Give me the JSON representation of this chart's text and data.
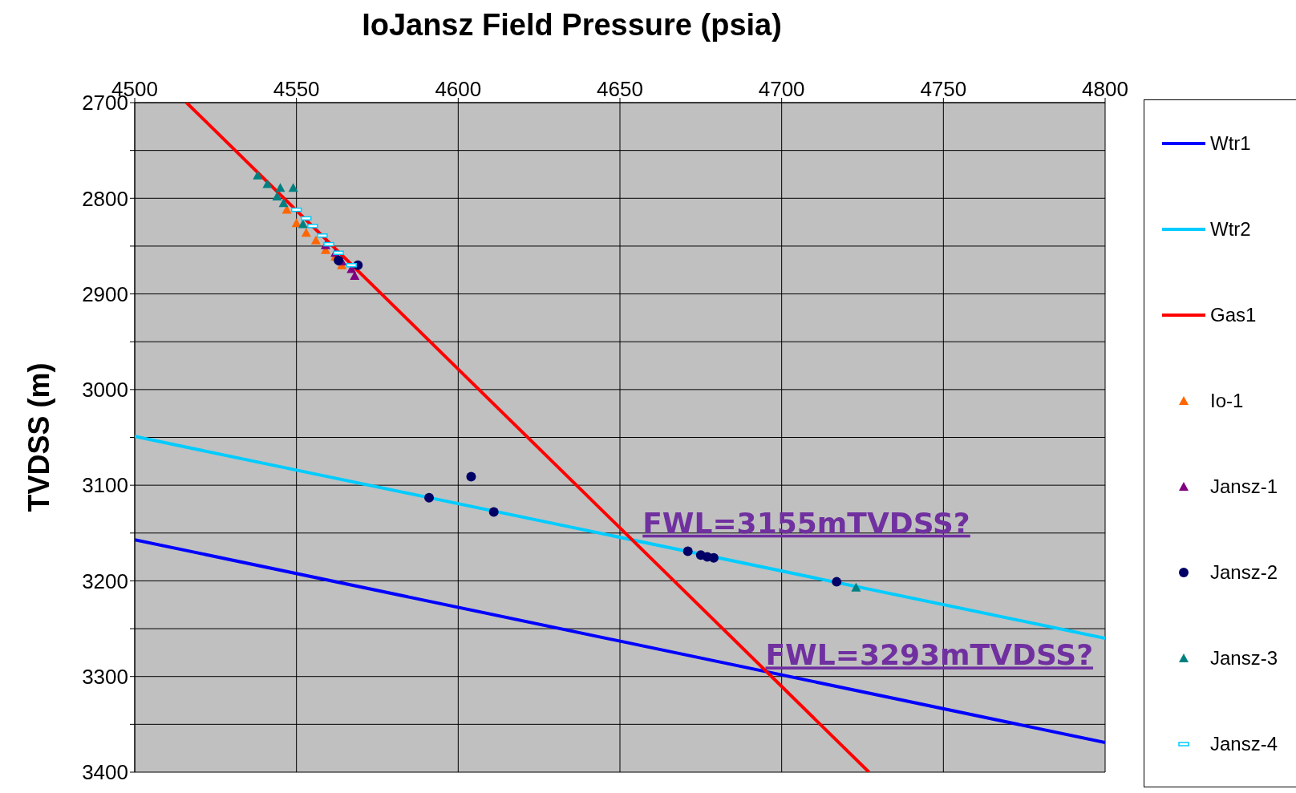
{
  "chart_data": {
    "type": "scatter",
    "title": "IoJansz Field Pressure (psia)",
    "ylabel": "TVDSS (m)",
    "xlim": [
      4500,
      4800
    ],
    "xticks": [
      4500,
      4550,
      4600,
      4650,
      4700,
      4750,
      4800
    ],
    "ylim": [
      3400,
      2700
    ],
    "yticks": [
      2700,
      {
        "value": 2750,
        "label": null
      },
      2800,
      {
        "value": 2850,
        "label": null
      },
      2900,
      {
        "value": 2950,
        "label": null
      },
      3000,
      {
        "value": 3050,
        "label": null
      },
      3100,
      {
        "value": 3150,
        "label": null
      },
      3200,
      {
        "value": 3250,
        "label": null
      },
      3300,
      {
        "value": 3350,
        "label": null
      },
      3400
    ],
    "grid": true,
    "legend": "right",
    "series": [
      {
        "name": "Wtr1",
        "type": "line",
        "color": "#0000ff",
        "marker": "none",
        "x": [
          4500,
          4800
        ],
        "values": [
          3157,
          3369
        ]
      },
      {
        "name": "Wtr2",
        "type": "line",
        "color": "#00ccff",
        "marker": "none",
        "x": [
          4500,
          4800
        ],
        "values": [
          3049,
          3260
        ]
      },
      {
        "name": "Gas1",
        "type": "line",
        "color": "#ff0000",
        "marker": "none",
        "x": [
          4516,
          4727
        ],
        "values": [
          2700,
          3400
        ]
      },
      {
        "name": "Io-1",
        "type": "scatter",
        "color": "#ff6600",
        "marker": "triangle",
        "x": [
          4547,
          4550,
          4553,
          4556,
          4559,
          4562,
          4564
        ],
        "values": [
          2812,
          2826,
          2836,
          2844,
          2854,
          2861,
          2870
        ]
      },
      {
        "name": "Jansz-1",
        "type": "scatter",
        "color": "#800080",
        "marker": "triangle",
        "x": [
          4559,
          4562,
          4564,
          4567,
          4568
        ],
        "values": [
          2849,
          2857,
          2866,
          2874,
          2881
        ]
      },
      {
        "name": "Jansz-2",
        "type": "scatter",
        "color": "#000066",
        "marker": "circle",
        "x": [
          4569,
          4563,
          4604,
          4591,
          4611,
          4671,
          4675,
          4677,
          4679,
          4717
        ],
        "values": [
          2870,
          2865,
          3091,
          3113,
          3128,
          3169,
          3173,
          3175,
          3176,
          3201
        ]
      },
      {
        "name": "Jansz-3",
        "type": "scatter",
        "color": "#008080",
        "marker": "triangle",
        "x": [
          4538,
          4541,
          4545,
          4549,
          4544,
          4546,
          4552,
          4723
        ],
        "values": [
          2776,
          2785,
          2789,
          2789,
          2798,
          2805,
          2827,
          3207
        ]
      },
      {
        "name": "Jansz-4",
        "type": "scatter",
        "color": "#00ccff",
        "marker": "square",
        "x": [
          4550,
          4553,
          4555,
          4558,
          4560,
          4563,
          4567
        ],
        "values": [
          2812,
          2821,
          2829,
          2839,
          2848,
          2857,
          2870
        ]
      }
    ],
    "annotations": [
      {
        "text": "FWL=3155mTVDSS?",
        "x": 4657,
        "y": 3155
      },
      {
        "text": "FWL=3293mTVDSS?",
        "x": 4695,
        "y": 3293
      }
    ]
  }
}
